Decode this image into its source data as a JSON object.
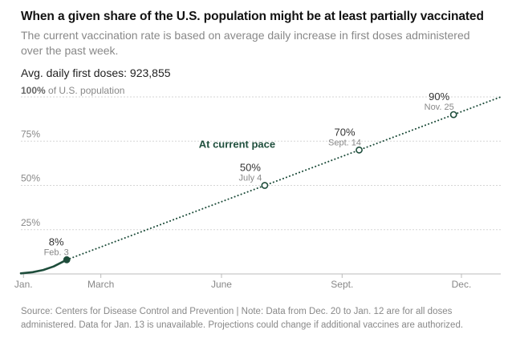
{
  "title": "When a given share of the U.S. population might be at least partially vaccinated",
  "subtitle": "The current vaccination rate is based on average daily increase in first doses administered over the past week.",
  "avg_label": "Avg. daily first doses: 923,855",
  "source": "Source: Centers for Disease Control and Prevention | Note: Data from Dec. 20 to Jan. 12 are for all doses administered. Data for Jan. 13 is unavailable. Projections could change if additional vaccines are authorized.",
  "colors": {
    "line": "#1e4d3b",
    "grid": "#d6d6d6",
    "text_muted": "#888888"
  },
  "chart_data": {
    "type": "line",
    "xlabel": "",
    "ylabel": "",
    "y_top_label": {
      "strong": "100%",
      "rest": " of U.S. population"
    },
    "ylim": [
      0,
      100
    ],
    "xlim": [
      "2020-12-30",
      "2021-12-31"
    ],
    "x_ticks": [
      {
        "label": "Jan.",
        "date": "2021-01-01"
      },
      {
        "label": "March",
        "date": "2021-03-01"
      },
      {
        "label": "June",
        "date": "2021-06-01"
      },
      {
        "label": "Sept.",
        "date": "2021-09-01"
      },
      {
        "label": "Dec.",
        "date": "2021-12-01"
      }
    ],
    "y_ticks": [
      {
        "label": "25%",
        "value": 25
      },
      {
        "label": "50%",
        "value": 50
      },
      {
        "label": "75%",
        "value": 75
      }
    ],
    "grid": true,
    "series": [
      {
        "style": "solid",
        "points": [
          {
            "x": "2020-12-30",
            "y": 0.3
          },
          {
            "x": "2021-01-08",
            "y": 1.0
          },
          {
            "x": "2021-01-16",
            "y": 2.2
          },
          {
            "x": "2021-01-24",
            "y": 4.2
          },
          {
            "x": "2021-02-03",
            "y": 8
          }
        ]
      },
      {
        "style": "dotted",
        "points": [
          {
            "x": "2021-02-03",
            "y": 8
          },
          {
            "x": "2021-12-31",
            "y": 100
          }
        ]
      }
    ],
    "markers": [
      {
        "x": "2021-02-03",
        "y": 8,
        "pct_label": "8%",
        "date_label": "Feb. 3",
        "filled": true
      },
      {
        "x": "2021-07-04",
        "y": 50,
        "pct_label": "50%",
        "date_label": "July 4",
        "filled": false
      },
      {
        "x": "2021-09-14",
        "y": 70,
        "pct_label": "70%",
        "date_label": "Sept. 14",
        "filled": false
      },
      {
        "x": "2021-11-25",
        "y": 90,
        "pct_label": "90%",
        "date_label": "Nov. 25",
        "filled": false
      }
    ],
    "annotations": [
      {
        "text": "At current pace",
        "x": "2021-05-28",
        "y": 73
      }
    ]
  }
}
